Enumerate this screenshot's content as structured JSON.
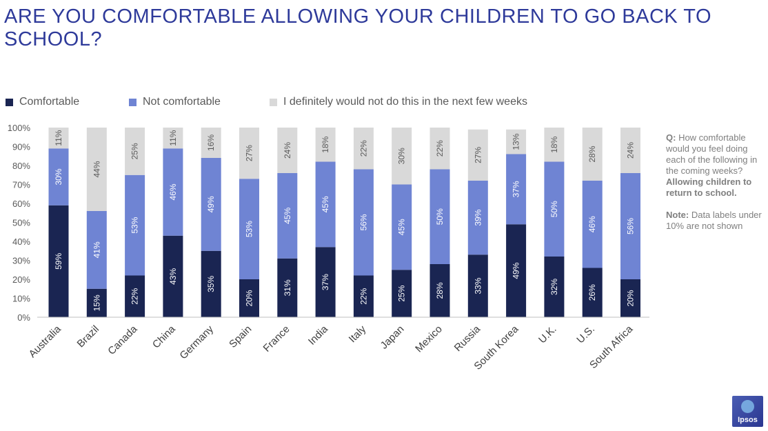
{
  "header": {
    "title": "ARE YOU COMFORTABLE ALLOWING YOUR CHILDREN TO GO BACK TO SCHOOL?"
  },
  "colors": {
    "comfortable": "#1a2552",
    "not_comfortable": "#6f84d3",
    "would_not": "#d9d9d9",
    "axis_text": "#595959",
    "title": "#2e3a9a"
  },
  "note": {
    "q_label": "Q:",
    "q_text": " How comfortable would you feel doing each of the following in the coming weeks? ",
    "q_bold": "Allowing children to return to school.",
    "note_label": "Note:",
    "note_text": " Data labels under 10% are not shown"
  },
  "logo": {
    "text": "Ipsos"
  },
  "chart_data": {
    "type": "bar",
    "stacked": true,
    "percent": true,
    "categories": [
      "Australia",
      "Brazil",
      "Canada",
      "China",
      "Germany",
      "Spain",
      "France",
      "India",
      "Italy",
      "Japan",
      "Mexico",
      "Russia",
      "South Korea",
      "U.K.",
      "U.S.",
      "South Africa"
    ],
    "series": [
      {
        "name": "Comfortable",
        "values": [
          59,
          15,
          22,
          43,
          35,
          20,
          31,
          37,
          22,
          25,
          28,
          33,
          49,
          32,
          26,
          20
        ]
      },
      {
        "name": "Not comfortable",
        "values": [
          30,
          41,
          53,
          46,
          49,
          53,
          45,
          45,
          56,
          45,
          50,
          39,
          37,
          50,
          46,
          56
        ]
      },
      {
        "name": "I definitely would not do this in the next few weeks",
        "values": [
          11,
          44,
          25,
          11,
          16,
          27,
          24,
          18,
          22,
          30,
          22,
          27,
          13,
          18,
          28,
          24
        ]
      }
    ],
    "yticks": [
      "0%",
      "10%",
      "20%",
      "30%",
      "40%",
      "50%",
      "60%",
      "70%",
      "80%",
      "90%",
      "100%"
    ],
    "ylim": [
      0,
      100
    ],
    "legend_position": "top-left"
  }
}
